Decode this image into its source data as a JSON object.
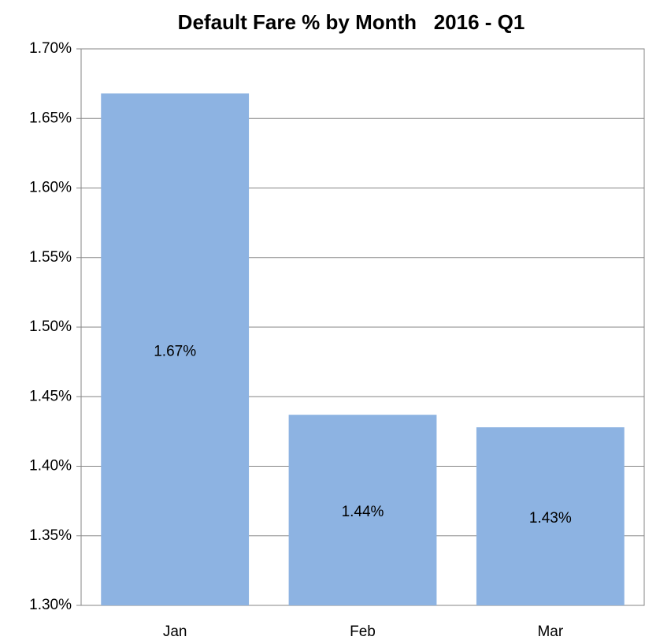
{
  "chart_data": {
    "type": "bar",
    "title": "Default Fare % by Month   2016 - Q1",
    "categories": [
      "Jan",
      "Feb",
      "Mar"
    ],
    "values": [
      1.668,
      1.437,
      1.428
    ],
    "value_labels": [
      "1.67%",
      "1.44%",
      "1.43%"
    ],
    "color": "#8db3e2",
    "ylim": [
      1.3,
      1.7
    ],
    "yticks": [
      {
        "value": 1.3,
        "label": "1.30%"
      },
      {
        "value": 1.35,
        "label": "1.35%"
      },
      {
        "value": 1.4,
        "label": "1.40%"
      },
      {
        "value": 1.45,
        "label": "1.45%"
      },
      {
        "value": 1.5,
        "label": "1.50%"
      },
      {
        "value": 1.55,
        "label": "1.55%"
      },
      {
        "value": 1.6,
        "label": "1.60%"
      },
      {
        "value": 1.65,
        "label": "1.65%"
      },
      {
        "value": 1.7,
        "label": "1.70%"
      }
    ],
    "grid": true
  }
}
